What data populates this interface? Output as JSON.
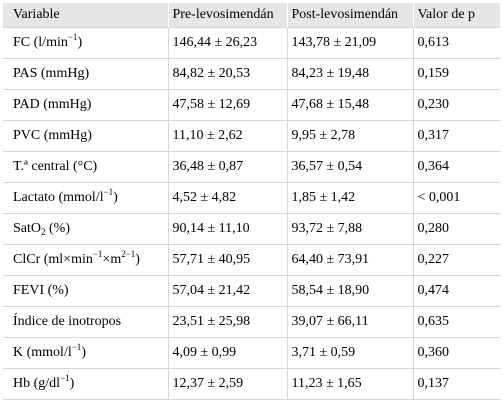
{
  "table": {
    "headers": [
      "Variable",
      "Pre-levosimendán",
      "Post-levosimendán",
      "Valor de p"
    ],
    "rows": [
      {
        "variable": {
          "text": "FC (l/min",
          "sup": "−1",
          "after": ")"
        },
        "pre": "146,44 ± 26,23",
        "post": "143,78 ± 21,09",
        "p": "0,613"
      },
      {
        "variable": {
          "text": "PAS (mmHg)"
        },
        "pre": "84,82 ± 20,53",
        "post": "84,23 ± 19,48",
        "p": "0,159"
      },
      {
        "variable": {
          "text": "PAD (mmHg)"
        },
        "pre": "47,58 ± 12,69",
        "post": "47,68 ± 15,48",
        "p": "0,230"
      },
      {
        "variable": {
          "text": "PVC (mmHg)"
        },
        "pre": "11,10 ± 2,62",
        "post": "9,95 ± 2,78",
        "p": "0,317"
      },
      {
        "variable": {
          "text": "T.ª central (°C)"
        },
        "pre": "36,48 ± 0,87",
        "post": "36,57 ± 0,54",
        "p": "0,364"
      },
      {
        "variable": {
          "text": "Lactato (mmol/l",
          "sup": "−1",
          "after": ")"
        },
        "pre": "4,52 ± 4,82",
        "post": "1,85 ± 1,42",
        "p": "< 0,001"
      },
      {
        "variable": {
          "text": "SatO",
          "sub": "2",
          "after": " (%)"
        },
        "pre": "90,14 ± 11,10",
        "post": "93,72 ± 7,88",
        "p": "0,280"
      },
      {
        "variable": {
          "text": "ClCr (ml×min",
          "sup": "−1",
          "mid": "×m",
          "sup2": "2−1",
          "after": ")"
        },
        "pre": "57,71 ± 40,95",
        "post": "64,40 ± 73,91",
        "p": "0,227"
      },
      {
        "variable": {
          "text": "FEVI (%)"
        },
        "pre": "57,04 ± 21,42",
        "post": "58,54 ± 18,90",
        "p": "0,474"
      },
      {
        "variable": {
          "text": "Índice de inotropos"
        },
        "pre": "23,51 ± 25,98",
        "post": "39,07 ± 66,11",
        "p": "0,635"
      },
      {
        "variable": {
          "text": "K (mmol/l",
          "sup": "−1",
          "after": ")"
        },
        "pre": "4,09 ± 0,99",
        "post": "3,71 ± 0,59",
        "p": "0,360"
      },
      {
        "variable": {
          "text": "Hb (g/dl",
          "sup": "−1",
          "after": ")"
        },
        "pre": "12,37 ± 2,59",
        "post": "11,23 ± 1,65",
        "p": "0,137"
      }
    ]
  }
}
